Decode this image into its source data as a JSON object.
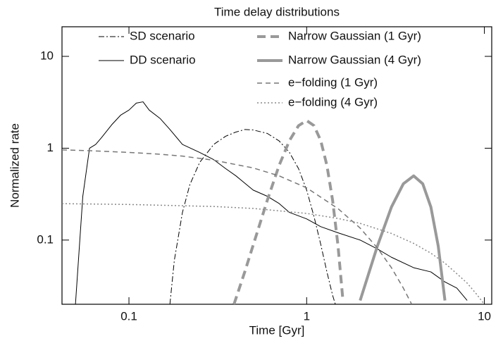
{
  "chart_data": {
    "type": "line",
    "title": "Time delay distributions",
    "xlabel": "Time [Gyr]",
    "ylabel": "Normalized rate",
    "xscale": "log",
    "yscale": "log",
    "xlim": [
      0.042,
      11
    ],
    "ylim": [
      0.02,
      21
    ],
    "xticks": [
      0.1,
      1,
      10
    ],
    "yticks": [
      0.1,
      1,
      10
    ],
    "legend": "top",
    "series": [
      {
        "name": "SD scenario",
        "color": "#000000",
        "linestyle": "dashdot",
        "linewidth": 1,
        "x": [
          0.17,
          0.18,
          0.2,
          0.22,
          0.25,
          0.3,
          0.35,
          0.4,
          0.45,
          0.5,
          0.6,
          0.7,
          0.8,
          0.9,
          1,
          1.1,
          1.2,
          1.3,
          1.4,
          1.45
        ],
        "values": [
          0.02,
          0.06,
          0.2,
          0.4,
          0.7,
          1.1,
          1.35,
          1.5,
          1.6,
          1.58,
          1.45,
          1.2,
          0.9,
          0.6,
          0.35,
          0.18,
          0.09,
          0.045,
          0.025,
          0.02
        ]
      },
      {
        "name": "DD scenario",
        "color": "#000000",
        "linestyle": "solid",
        "linewidth": 1,
        "x": [
          0.05,
          0.055,
          0.06,
          0.065,
          0.07,
          0.08,
          0.09,
          0.1,
          0.11,
          0.12,
          0.13,
          0.15,
          0.17,
          0.2,
          0.25,
          0.3,
          0.35,
          0.4,
          0.5,
          0.6,
          0.7,
          0.8,
          1,
          1.2,
          1.5,
          2,
          2.5,
          3,
          4,
          5,
          6,
          7,
          8
        ],
        "values": [
          0.02,
          0.3,
          1.0,
          1.1,
          1.3,
          1.8,
          2.3,
          2.6,
          3.1,
          3.2,
          2.6,
          2.1,
          1.6,
          1.1,
          0.9,
          0.75,
          0.6,
          0.5,
          0.35,
          0.3,
          0.25,
          0.2,
          0.17,
          0.14,
          0.12,
          0.1,
          0.08,
          0.065,
          0.05,
          0.045,
          0.035,
          0.03,
          0.022
        ]
      },
      {
        "name": "Narrow Gaussian (1 Gyr)",
        "color": "#999999",
        "linestyle": "dashed",
        "linewidth": 4,
        "x": [
          0.39,
          0.45,
          0.5,
          0.6,
          0.7,
          0.8,
          0.9,
          1,
          1.1,
          1.2,
          1.3,
          1.4,
          1.5,
          1.6
        ],
        "values": [
          0.02,
          0.046,
          0.088,
          0.27,
          0.65,
          1.21,
          1.76,
          2,
          1.76,
          1.21,
          0.65,
          0.27,
          0.088,
          0.022
        ]
      },
      {
        "name": "Narrow Gaussian (4 Gyr)",
        "color": "#999999",
        "linestyle": "solid",
        "linewidth": 4,
        "x": [
          2,
          2.5,
          3,
          3.5,
          4,
          4.5,
          5,
          5.5,
          6
        ],
        "values": [
          0.022,
          0.086,
          0.229,
          0.41,
          0.5,
          0.41,
          0.229,
          0.086,
          0.022
        ]
      },
      {
        "name": "e−folding (1 Gyr)",
        "color": "#777777",
        "linestyle": "dashed",
        "linewidth": 1.5,
        "x": [
          0.042,
          0.06,
          0.1,
          0.15,
          0.2,
          0.3,
          0.5,
          0.7,
          1,
          1.5,
          2,
          2.5,
          3,
          3.5,
          3.9
        ],
        "values": [
          0.96,
          0.94,
          0.9,
          0.86,
          0.82,
          0.74,
          0.61,
          0.5,
          0.37,
          0.22,
          0.135,
          0.082,
          0.05,
          0.03,
          0.02
        ]
      },
      {
        "name": "e−folding (4 Gyr)",
        "color": "#888888",
        "linestyle": "dotted",
        "linewidth": 1.5,
        "x": [
          0.042,
          0.1,
          0.3,
          0.5,
          1,
          1.5,
          2,
          3,
          4,
          5,
          6,
          7,
          8,
          9,
          10
        ],
        "values": [
          0.249,
          0.244,
          0.232,
          0.221,
          0.195,
          0.172,
          0.152,
          0.118,
          0.092,
          0.072,
          0.056,
          0.043,
          0.034,
          0.026,
          0.02
        ]
      }
    ]
  }
}
